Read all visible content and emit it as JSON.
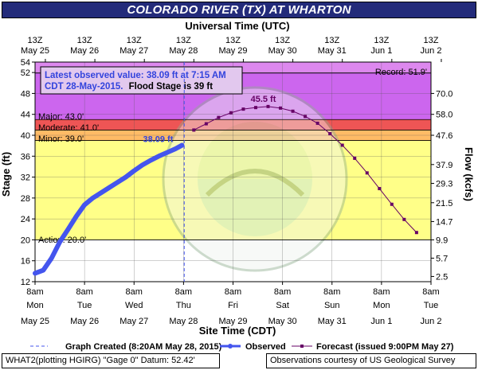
{
  "header": {
    "title": "COLORADO RIVER (TX) AT WHARTON",
    "top_axis_label": "Universal Time (UTC)"
  },
  "colors": {
    "title_bg": "#232b7a",
    "record_zone": "#dd88ee",
    "major_zone": "#cc66ee",
    "moderate_zone": "#ee5555",
    "minor_zone": "#ffbb66",
    "action_zone": "#ffff88",
    "observed_line": "#4455ee",
    "forecast_line": "#660066"
  },
  "flood_info": {
    "line1": "Latest observed value: 38.09 ft at 7:15 AM",
    "line2_a": "CDT 28-May-2015.",
    "line2_b": "Flood Stage is 39 ft"
  },
  "stage_labels": {
    "record": "Record: 51.9'",
    "major": "Major: 43.0'",
    "moderate": "Moderate: 41.0'",
    "minor": "Minor: 39.0'",
    "action": "Action: 20.0'"
  },
  "annotations": {
    "latest_obs": "38.09 ft",
    "forecast_crest": "45.5 ft"
  },
  "legend": {
    "graph_created": "Graph Created (8:20AM May 28, 2015)",
    "observed": "Observed",
    "forecast": "Forecast (issued 9:00PM May 27)"
  },
  "footer": {
    "left": "WHAT2(plotting HGIRG) \"Gage 0\" Datum: 52.42'",
    "right": "Observations courtesy of US Geological Survey"
  },
  "chart_data": {
    "type": "line",
    "title": "COLORADO RIVER (TX) AT WHARTON",
    "xlabel": "Site Time (CDT)",
    "x2label": "Universal Time (UTC)",
    "ylabel": "Stage (ft)",
    "y2label": "Flow (kcfs)",
    "ylim": [
      12,
      54
    ],
    "xlim": [
      "2015-05-25 08:00",
      "2015-06-02 08:00"
    ],
    "grid": true,
    "y_ticks": [
      "12",
      "16",
      "20",
      "24",
      "28",
      "32",
      "36",
      "40",
      "44",
      "48",
      "52",
      "54"
    ],
    "y2_ticks": [
      {
        "stage": 13.0,
        "label": "2.5"
      },
      {
        "stage": 16.5,
        "label": "5.7"
      },
      {
        "stage": 20.0,
        "label": "9.9"
      },
      {
        "stage": 23.5,
        "label": "14.7"
      },
      {
        "stage": 27.1,
        "label": "21.5"
      },
      {
        "stage": 30.8,
        "label": "29.3"
      },
      {
        "stage": 34.4,
        "label": "37.9"
      },
      {
        "stage": 40.0,
        "label": "47.6"
      },
      {
        "stage": 44.0,
        "label": "58.0"
      },
      {
        "stage": 48.0,
        "label": "70.0"
      }
    ],
    "x_ticks_bottom": [
      {
        "l1": "8am",
        "l2": "Mon",
        "l3": "May 25"
      },
      {
        "l1": "8am",
        "l2": "Tue",
        "l3": "May 26"
      },
      {
        "l1": "8am",
        "l2": "Wed",
        "l3": "May 27"
      },
      {
        "l1": "8am",
        "l2": "Thu",
        "l3": "May 28"
      },
      {
        "l1": "8am",
        "l2": "Fri",
        "l3": "May 29"
      },
      {
        "l1": "8am",
        "l2": "Sat",
        "l3": "May 30"
      },
      {
        "l1": "8am",
        "l2": "Sun",
        "l3": "May 31"
      },
      {
        "l1": "8am",
        "l2": "Mon",
        "l3": "Jun 1"
      },
      {
        "l1": "8am",
        "l2": "Tue",
        "l3": "Jun 2"
      }
    ],
    "x_ticks_top": [
      {
        "l1": "13Z",
        "l2": "May 25"
      },
      {
        "l1": "13Z",
        "l2": "May 26"
      },
      {
        "l1": "13Z",
        "l2": "May 27"
      },
      {
        "l1": "13Z",
        "l2": "May 28"
      },
      {
        "l1": "13Z",
        "l2": "May 29"
      },
      {
        "l1": "13Z",
        "l2": "May 30"
      },
      {
        "l1": "13Z",
        "l2": "May 31"
      },
      {
        "l1": "13Z",
        "l2": "Jun 1"
      },
      {
        "l1": "13Z",
        "l2": "Jun 2"
      }
    ],
    "flood_categories": [
      {
        "name": "Action",
        "stage": 20.0
      },
      {
        "name": "Minor",
        "stage": 39.0
      },
      {
        "name": "Moderate",
        "stage": 41.0
      },
      {
        "name": "Major",
        "stage": 43.0
      },
      {
        "name": "Record",
        "stage": 51.9
      }
    ],
    "graph_created": "2015-05-28 08:20",
    "series": [
      {
        "name": "Observed",
        "color": "#4455ee",
        "points": [
          [
            "2015-05-25 08:00",
            13.6
          ],
          [
            "2015-05-25 12:00",
            14.2
          ],
          [
            "2015-05-25 16:00",
            16.5
          ],
          [
            "2015-05-25 20:00",
            19.6
          ],
          [
            "2015-05-26 00:00",
            22.0
          ],
          [
            "2015-05-26 04:00",
            24.5
          ],
          [
            "2015-05-26 08:00",
            26.7
          ],
          [
            "2015-05-26 12:00",
            28.0
          ],
          [
            "2015-05-26 16:00",
            29.0
          ],
          [
            "2015-05-26 20:00",
            30.0
          ],
          [
            "2015-05-27 00:00",
            31.0
          ],
          [
            "2015-05-27 04:00",
            32.0
          ],
          [
            "2015-05-27 08:00",
            33.2
          ],
          [
            "2015-05-27 12:00",
            34.3
          ],
          [
            "2015-05-27 16:00",
            35.2
          ],
          [
            "2015-05-27 20:00",
            36.0
          ],
          [
            "2015-05-28 00:00",
            36.7
          ],
          [
            "2015-05-28 04:00",
            37.4
          ],
          [
            "2015-05-28 07:15",
            38.09
          ]
        ]
      },
      {
        "name": "Forecast (issued 9:00PM May 27)",
        "color": "#660066",
        "points": [
          [
            "2015-05-28 13:00",
            41.0
          ],
          [
            "2015-05-28 19:00",
            42.2
          ],
          [
            "2015-05-29 01:00",
            43.4
          ],
          [
            "2015-05-29 07:00",
            44.3
          ],
          [
            "2015-05-29 13:00",
            45.0
          ],
          [
            "2015-05-29 19:00",
            45.3
          ],
          [
            "2015-05-30 01:00",
            45.5
          ],
          [
            "2015-05-30 07:00",
            45.2
          ],
          [
            "2015-05-30 13:00",
            44.6
          ],
          [
            "2015-05-30 19:00",
            43.6
          ],
          [
            "2015-05-31 01:00",
            42.3
          ],
          [
            "2015-05-31 07:00",
            40.3
          ],
          [
            "2015-05-31 13:00",
            38.1
          ],
          [
            "2015-05-31 19:00",
            35.6
          ],
          [
            "2015-06-01 01:00",
            32.8
          ],
          [
            "2015-06-01 07:00",
            29.8
          ],
          [
            "2015-06-01 13:00",
            26.8
          ],
          [
            "2015-06-01 19:00",
            23.9
          ],
          [
            "2015-06-02 01:00",
            21.4
          ]
        ]
      }
    ]
  }
}
